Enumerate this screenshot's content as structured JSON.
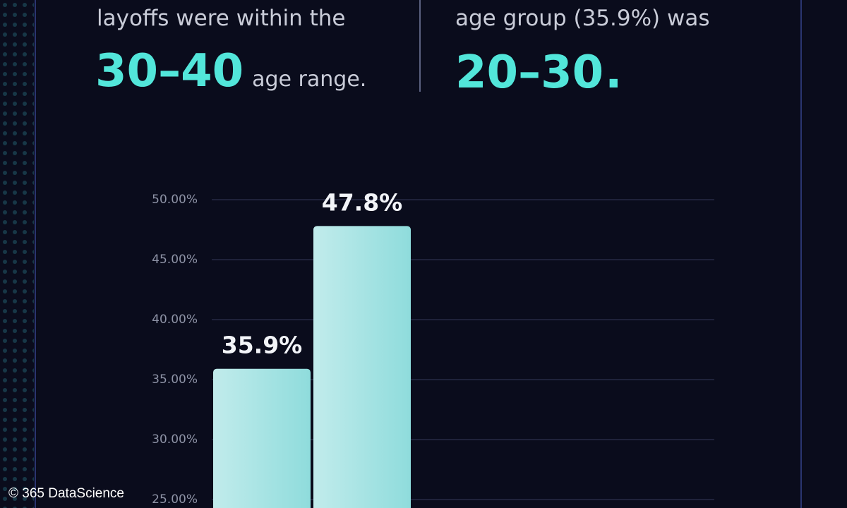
{
  "left_fact": {
    "lead": "layoffs were within the",
    "highlight": "30–40",
    "tail": "age range."
  },
  "right_fact": {
    "lead": "age group (35.9%) was",
    "highlight": "20–30",
    "tail": "."
  },
  "chart_data": {
    "type": "bar",
    "categories": [
      null,
      null
    ],
    "values": [
      35.9,
      47.8
    ],
    "value_labels": [
      "35.9%",
      "47.8%"
    ],
    "color": "#8fdcdc",
    "ylim": [
      25,
      50
    ],
    "yticks": [
      {
        "value": 25,
        "label": "25.00%"
      },
      {
        "value": 30,
        "label": "30.00%"
      },
      {
        "value": 35,
        "label": "35.00%"
      },
      {
        "value": 40,
        "label": "40.00%"
      },
      {
        "value": 45,
        "label": "45.00%"
      },
      {
        "value": 50,
        "label": "50.00%"
      }
    ],
    "grid": true
  },
  "watermark": "© 365 DataScience"
}
